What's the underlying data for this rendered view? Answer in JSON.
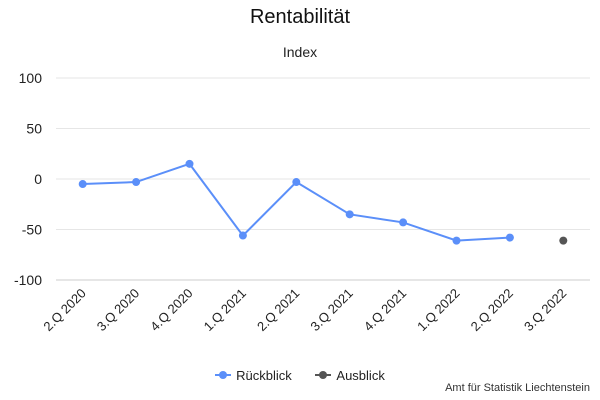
{
  "chart_data": {
    "type": "line",
    "title": "Rentabilität",
    "subtitle": "Index",
    "categories": [
      "2.Q 2020",
      "3.Q 2020",
      "4.Q 2020",
      "1.Q 2021",
      "2.Q 2021",
      "3.Q 2021",
      "4.Q 2021",
      "1.Q 2022",
      "2.Q 2022",
      "3.Q 2022"
    ],
    "ylim": [
      -100,
      100
    ],
    "yticks": [
      100,
      50,
      0,
      -50,
      -100
    ],
    "grid": true,
    "legend_position": "bottom",
    "series": [
      {
        "name": "Rückblick",
        "color": "#5b8ff9",
        "values": [
          -5,
          -3,
          15,
          -56,
          -3,
          -35,
          -43,
          -61,
          -58,
          null
        ]
      },
      {
        "name": "Ausblick",
        "color": "#555555",
        "values": [
          null,
          null,
          null,
          null,
          null,
          null,
          null,
          null,
          null,
          -61
        ]
      }
    ]
  },
  "source": "Amt für Statistik Liechtenstein"
}
